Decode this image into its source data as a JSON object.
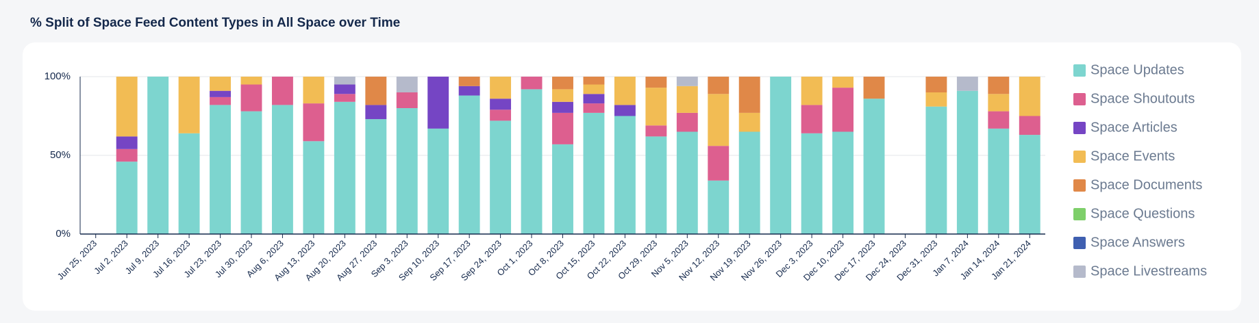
{
  "chart_data": {
    "type": "stacked_bar",
    "title": "% Split of Space Feed Content Types in All Space over Time",
    "categories": [
      "Jun 25, 2023",
      "Jul 2, 2023",
      "Jul 9, 2023",
      "Jul 16, 2023",
      "Jul 23, 2023",
      "Jul 30, 2023",
      "Aug 6, 2023",
      "Aug 13, 2023",
      "Aug 20, 2023",
      "Aug 27, 2023",
      "Sep 3, 2023",
      "Sep 10, 2023",
      "Sep 17, 2023",
      "Sep 24, 2023",
      "Oct 1, 2023",
      "Oct 8, 2023",
      "Oct 15, 2023",
      "Oct 22, 2023",
      "Oct 29, 2023",
      "Nov 5, 2023",
      "Nov 12, 2023",
      "Nov 19, 2023",
      "Nov 26, 2023",
      "Dec 3, 2023",
      "Dec 10, 2023",
      "Dec 17, 2023",
      "Dec 24, 2023",
      "Dec 31, 2023",
      "Jan 7, 2024",
      "Jan 14, 2024",
      "Jan 21, 2024"
    ],
    "series": [
      {
        "name": "Space Updates",
        "color": "#7dd5cf",
        "values": [
          null,
          46,
          100,
          64,
          82,
          78,
          82,
          59,
          84,
          73,
          80,
          67,
          88,
          72,
          92,
          57,
          77,
          75,
          62,
          65,
          34,
          65,
          100,
          64,
          65,
          86,
          null,
          81,
          91,
          67,
          63
        ]
      },
      {
        "name": "Space Shoutouts",
        "color": "#dd5f8f",
        "values": [
          null,
          8,
          0,
          0,
          5,
          17,
          18,
          24,
          5,
          0,
          10,
          0,
          0,
          7,
          8,
          20,
          6,
          0,
          7,
          12,
          22,
          0,
          0,
          18,
          28,
          0,
          null,
          0,
          0,
          11,
          12
        ]
      },
      {
        "name": "Space Articles",
        "color": "#7545c4",
        "values": [
          null,
          8,
          0,
          0,
          4,
          0,
          0,
          0,
          6,
          9,
          0,
          33,
          6,
          7,
          0,
          7,
          6,
          7,
          0,
          0,
          0,
          0,
          0,
          0,
          0,
          0,
          null,
          0,
          0,
          0,
          0
        ]
      },
      {
        "name": "Space Events",
        "color": "#f2bc54",
        "values": [
          null,
          38,
          0,
          36,
          9,
          5,
          0,
          17,
          0,
          0,
          0,
          0,
          0,
          14,
          0,
          8,
          6,
          18,
          24,
          17,
          33,
          12,
          0,
          18,
          7,
          0,
          null,
          9,
          0,
          11,
          25
        ]
      },
      {
        "name": "Space Documents",
        "color": "#e08848",
        "values": [
          null,
          0,
          0,
          0,
          0,
          0,
          0,
          0,
          0,
          18,
          0,
          0,
          6,
          0,
          0,
          8,
          5,
          0,
          7,
          0,
          11,
          23,
          0,
          0,
          0,
          14,
          null,
          10,
          0,
          11,
          0
        ]
      },
      {
        "name": "Space Questions",
        "color": "#7ecf6a",
        "values": [
          null,
          0,
          0,
          0,
          0,
          0,
          0,
          0,
          0,
          0,
          0,
          0,
          0,
          0,
          0,
          0,
          0,
          0,
          0,
          0,
          0,
          0,
          0,
          0,
          0,
          0,
          null,
          0,
          0,
          0,
          0
        ]
      },
      {
        "name": "Space Answers",
        "color": "#3f5fb0",
        "values": [
          null,
          0,
          0,
          0,
          0,
          0,
          0,
          0,
          0,
          0,
          0,
          0,
          0,
          0,
          0,
          0,
          0,
          0,
          0,
          0,
          0,
          0,
          0,
          0,
          0,
          0,
          null,
          0,
          0,
          0,
          0
        ]
      },
      {
        "name": "Space Livestreams",
        "color": "#b5bacb",
        "values": [
          null,
          0,
          0,
          0,
          0,
          0,
          0,
          0,
          5,
          0,
          10,
          0,
          0,
          0,
          0,
          0,
          0,
          0,
          0,
          6,
          0,
          0,
          0,
          0,
          0,
          0,
          null,
          0,
          9,
          0,
          0
        ]
      }
    ],
    "ylim": [
      0,
      100
    ],
    "yticks": [
      {
        "value": 0,
        "label": "0%"
      },
      {
        "value": 50,
        "label": "50%"
      },
      {
        "value": 100,
        "label": "100%"
      }
    ],
    "grid": true,
    "legend": "right"
  }
}
